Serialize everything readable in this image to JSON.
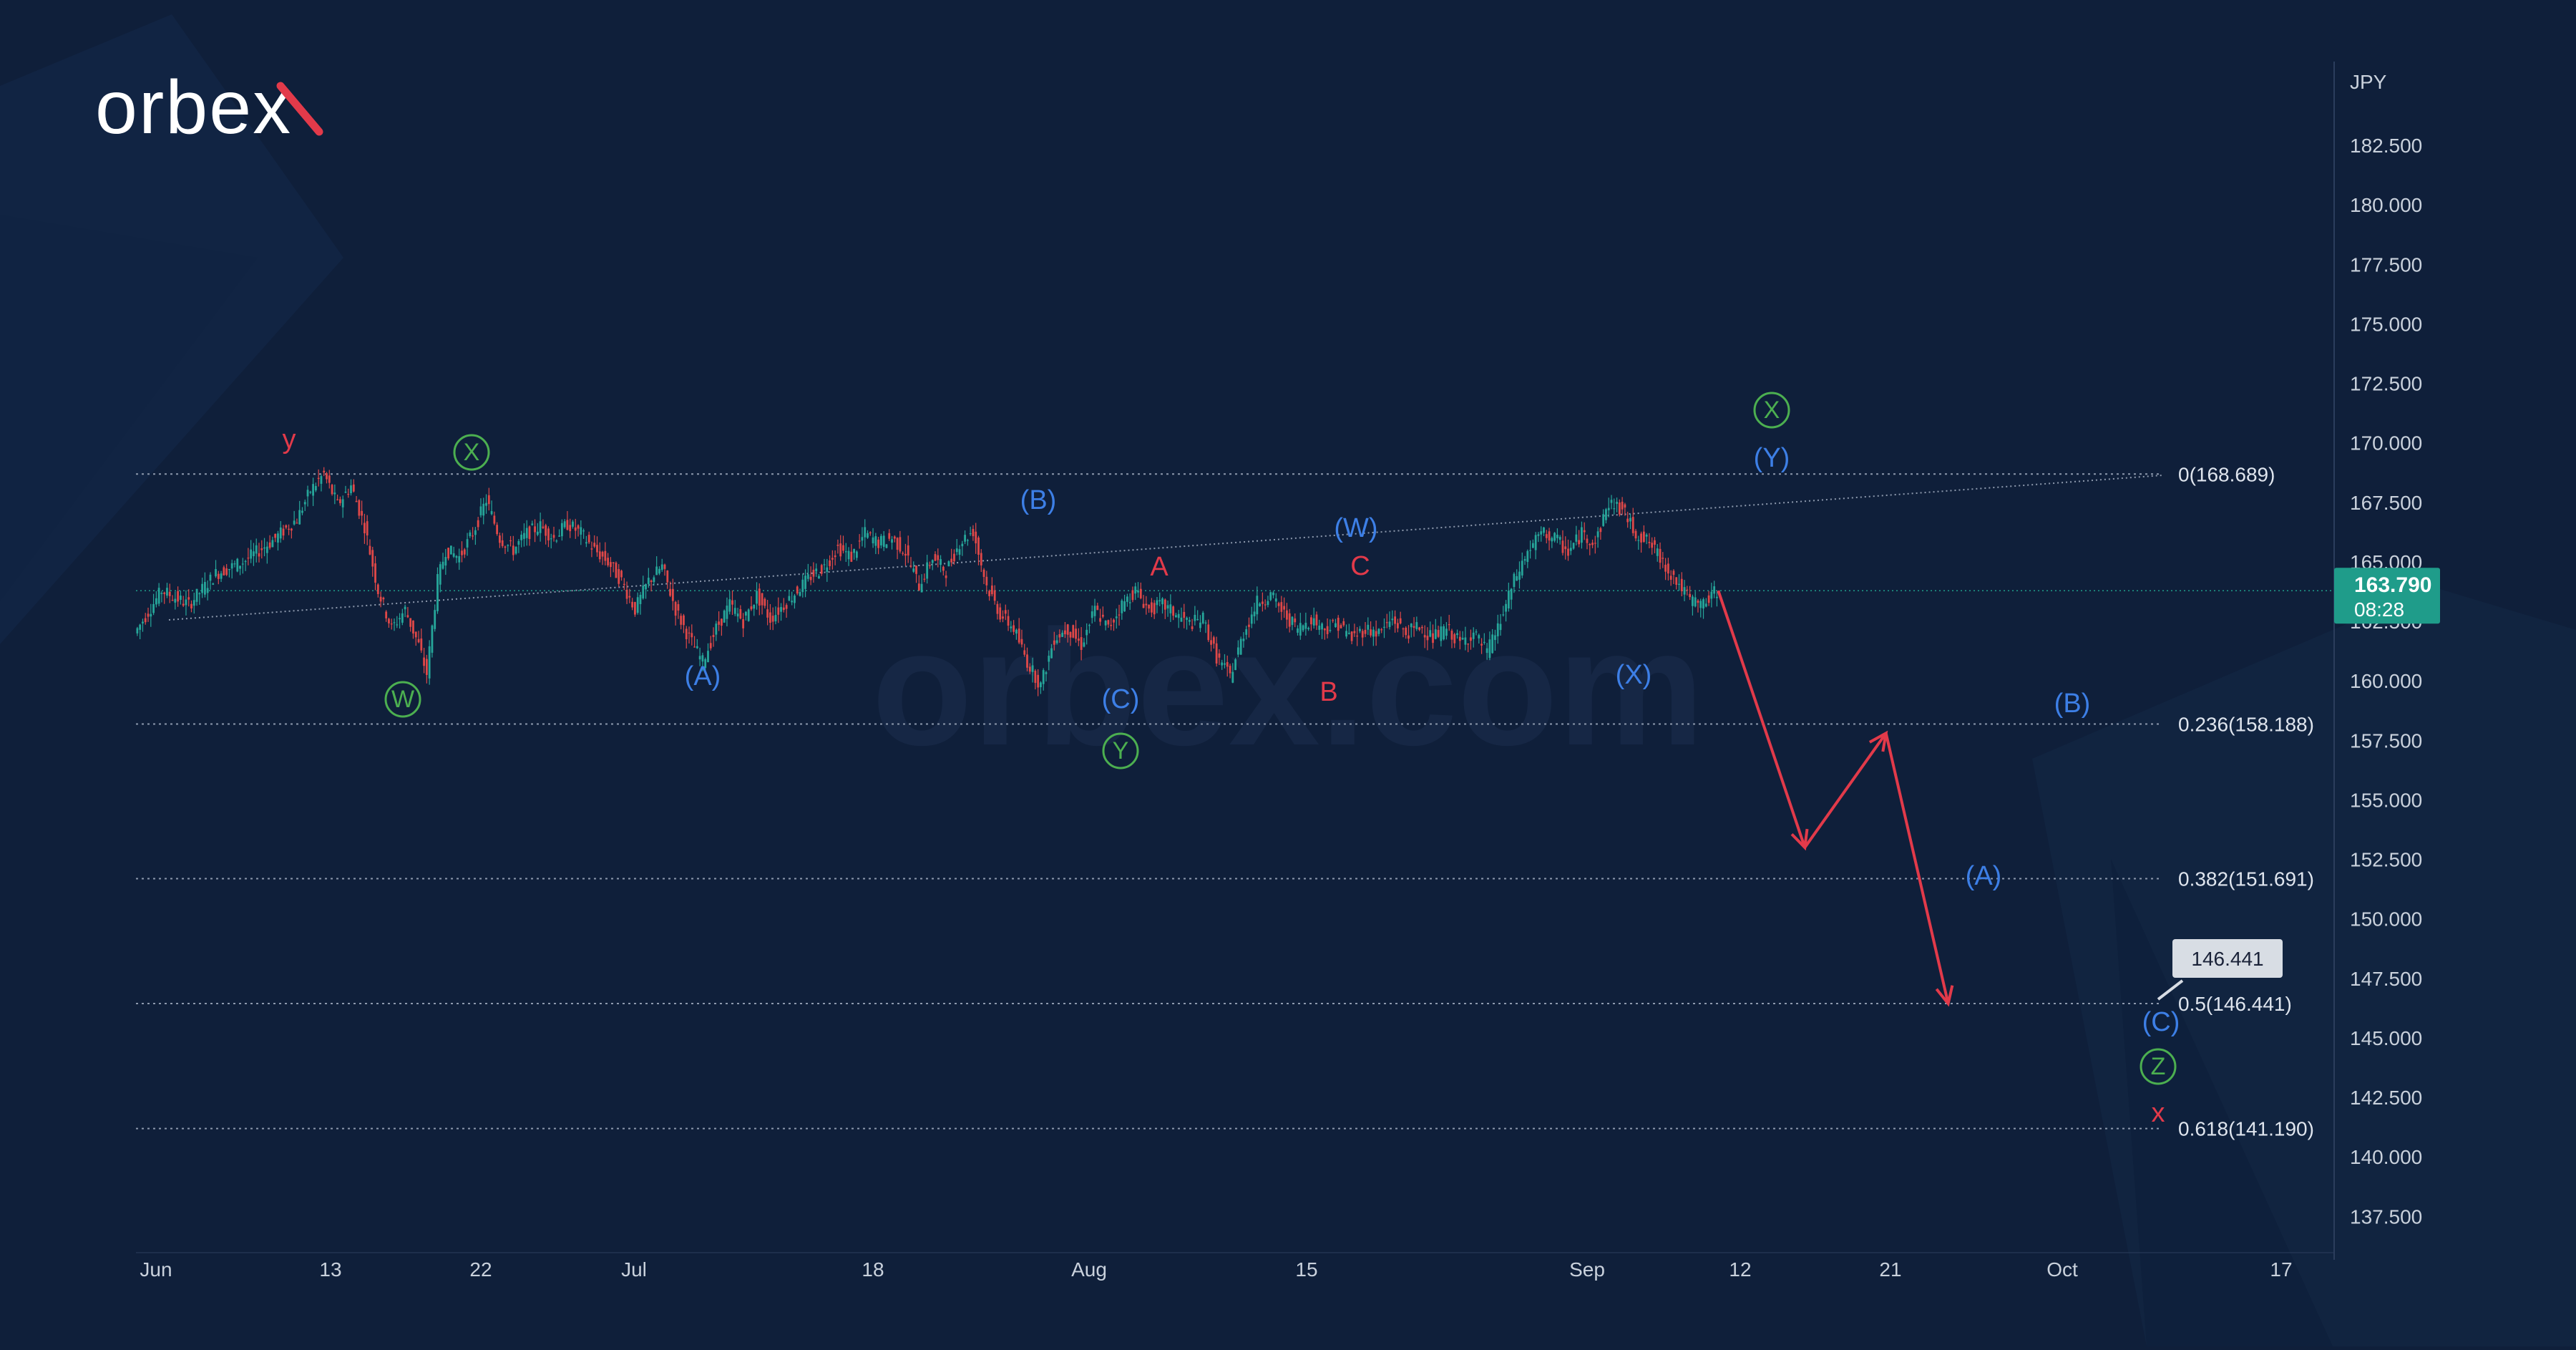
{
  "brand": {
    "logo_text": "orbex",
    "watermark": "orbex.com"
  },
  "colors": {
    "background": "#0f1f3a",
    "candle_up": "#26a69a",
    "candle_down": "#e04848",
    "wave_green": "#4caf50",
    "wave_blue": "#3d7fe6",
    "wave_red": "#e23a4a",
    "price_badge": "#1f9c8a",
    "label_grey": "#c9d1dc"
  },
  "chart_data": {
    "type": "candlestick",
    "title": "",
    "currency": "JPY",
    "ylim": [
      136.5,
      184.5
    ],
    "y_ticks": [
      "182.500",
      "180.000",
      "177.500",
      "175.000",
      "172.500",
      "170.000",
      "167.500",
      "165.000",
      "162.500",
      "160.000",
      "157.500",
      "155.000",
      "152.500",
      "150.000",
      "147.500",
      "145.000",
      "142.500",
      "140.000",
      "137.500"
    ],
    "x_ticks": [
      "Jun",
      "13",
      "22",
      "Jul",
      "18",
      "Aug",
      "15",
      "Sep",
      "12",
      "21",
      "Oct",
      "17"
    ],
    "current_price": {
      "value": "163.790",
      "countdown": "08:28"
    },
    "fibonacci": [
      {
        "label": "0(168.689)",
        "value": 168.689
      },
      {
        "label": "0.236(158.188)",
        "value": 158.188
      },
      {
        "label": "0.382(151.691)",
        "value": 151.691
      },
      {
        "label": "0.5(146.441)",
        "value": 146.441
      },
      {
        "label": "0.618(141.190)",
        "value": 141.19
      }
    ],
    "target_label": "146.441",
    "price_path": [
      [
        0,
        162.0
      ],
      [
        10,
        163.8
      ],
      [
        20,
        163.2
      ],
      [
        30,
        164.5
      ],
      [
        40,
        165.0
      ],
      [
        50,
        165.8
      ],
      [
        60,
        166.8
      ],
      [
        65,
        168.0
      ],
      [
        70,
        168.69
      ],
      [
        75,
        167.4
      ],
      [
        80,
        168.2
      ],
      [
        85,
        166.5
      ],
      [
        90,
        163.8
      ],
      [
        95,
        162.2
      ],
      [
        100,
        163.0
      ],
      [
        105,
        161.5
      ],
      [
        108,
        160.3
      ],
      [
        112,
        164.2
      ],
      [
        115,
        165.5
      ],
      [
        120,
        165.2
      ],
      [
        125,
        166.2
      ],
      [
        130,
        167.6
      ],
      [
        135,
        166.0
      ],
      [
        140,
        165.5
      ],
      [
        145,
        166.2
      ],
      [
        150,
        166.5
      ],
      [
        155,
        166.0
      ],
      [
        160,
        166.6
      ],
      [
        165,
        166.2
      ],
      [
        170,
        165.5
      ],
      [
        175,
        165.0
      ],
      [
        180,
        164.2
      ],
      [
        185,
        163.0
      ],
      [
        190,
        164.2
      ],
      [
        195,
        164.8
      ],
      [
        200,
        163.0
      ],
      [
        205,
        161.8
      ],
      [
        210,
        160.8
      ],
      [
        215,
        162.2
      ],
      [
        220,
        163.2
      ],
      [
        225,
        162.5
      ],
      [
        230,
        163.6
      ],
      [
        235,
        162.6
      ],
      [
        240,
        163.2
      ],
      [
        245,
        163.8
      ],
      [
        250,
        164.4
      ],
      [
        255,
        164.8
      ],
      [
        260,
        165.6
      ],
      [
        265,
        165.2
      ],
      [
        270,
        166.2
      ],
      [
        275,
        165.8
      ],
      [
        280,
        166.0
      ],
      [
        285,
        165.4
      ],
      [
        290,
        164.0
      ],
      [
        295,
        165.2
      ],
      [
        300,
        164.6
      ],
      [
        305,
        165.8
      ],
      [
        310,
        166.3
      ],
      [
        315,
        164.0
      ],
      [
        320,
        162.8
      ],
      [
        325,
        162.2
      ],
      [
        330,
        160.8
      ],
      [
        335,
        159.8
      ],
      [
        340,
        161.8
      ],
      [
        345,
        162.2
      ],
      [
        350,
        161.5
      ],
      [
        355,
        163.0
      ],
      [
        360,
        162.2
      ],
      [
        365,
        163.2
      ],
      [
        370,
        163.8
      ],
      [
        375,
        163.0
      ],
      [
        380,
        163.2
      ],
      [
        385,
        162.8
      ],
      [
        390,
        162.4
      ],
      [
        395,
        162.6
      ],
      [
        400,
        161.0
      ],
      [
        405,
        160.2
      ],
      [
        410,
        162.0
      ],
      [
        415,
        163.3
      ],
      [
        420,
        163.6
      ],
      [
        425,
        162.8
      ],
      [
        430,
        162.2
      ],
      [
        435,
        162.6
      ],
      [
        440,
        162.2
      ],
      [
        445,
        162.4
      ],
      [
        450,
        161.8
      ],
      [
        455,
        162.2
      ],
      [
        460,
        162.0
      ],
      [
        465,
        162.6
      ],
      [
        470,
        162.0
      ],
      [
        475,
        162.3
      ],
      [
        480,
        161.8
      ],
      [
        485,
        162.2
      ],
      [
        490,
        161.6
      ],
      [
        495,
        162.0
      ],
      [
        500,
        161.2
      ],
      [
        505,
        162.5
      ],
      [
        510,
        164.2
      ],
      [
        515,
        165.4
      ],
      [
        520,
        166.2
      ],
      [
        525,
        166.0
      ],
      [
        530,
        165.4
      ],
      [
        535,
        166.2
      ],
      [
        540,
        165.8
      ],
      [
        545,
        167.5
      ],
      [
        550,
        167.2
      ],
      [
        555,
        166.2
      ],
      [
        560,
        165.8
      ],
      [
        565,
        165.0
      ],
      [
        570,
        164.2
      ],
      [
        575,
        163.4
      ],
      [
        580,
        163.2
      ],
      [
        585,
        163.8
      ]
    ],
    "projection": [
      {
        "date_index": 585,
        "value": 163.79
      },
      {
        "date_index": 617,
        "value": 153.0
      },
      {
        "date_index": 647,
        "value": 157.8
      },
      {
        "date_index": 670,
        "value": 146.44
      }
    ],
    "wave_labels": [
      {
        "text": "y",
        "color": "red",
        "circle": false
      },
      {
        "text": "X",
        "color": "green",
        "circle": true
      },
      {
        "text": "W",
        "color": "green",
        "circle": true
      },
      {
        "text": "(A)",
        "color": "blue",
        "circle": false
      },
      {
        "text": "(B)",
        "color": "blue",
        "circle": false
      },
      {
        "text": "(C)",
        "color": "blue",
        "circle": false
      },
      {
        "text": "Y",
        "color": "green",
        "circle": true
      },
      {
        "text": "A",
        "color": "red",
        "circle": false
      },
      {
        "text": "B",
        "color": "red",
        "circle": false
      },
      {
        "text": "C",
        "color": "red",
        "circle": false
      },
      {
        "text": "(W)",
        "color": "blue",
        "circle": false
      },
      {
        "text": "(X)",
        "color": "blue",
        "circle": false
      },
      {
        "text": "(Y)",
        "color": "blue",
        "circle": false
      },
      {
        "text": "X",
        "color": "green",
        "circle": true
      },
      {
        "text": "(A)",
        "color": "blue",
        "circle": false
      },
      {
        "text": "(B)",
        "color": "blue",
        "circle": false
      },
      {
        "text": "(C)",
        "color": "blue",
        "circle": false
      },
      {
        "text": "Z",
        "color": "green",
        "circle": true
      },
      {
        "text": "x",
        "color": "red",
        "circle": false
      }
    ]
  }
}
